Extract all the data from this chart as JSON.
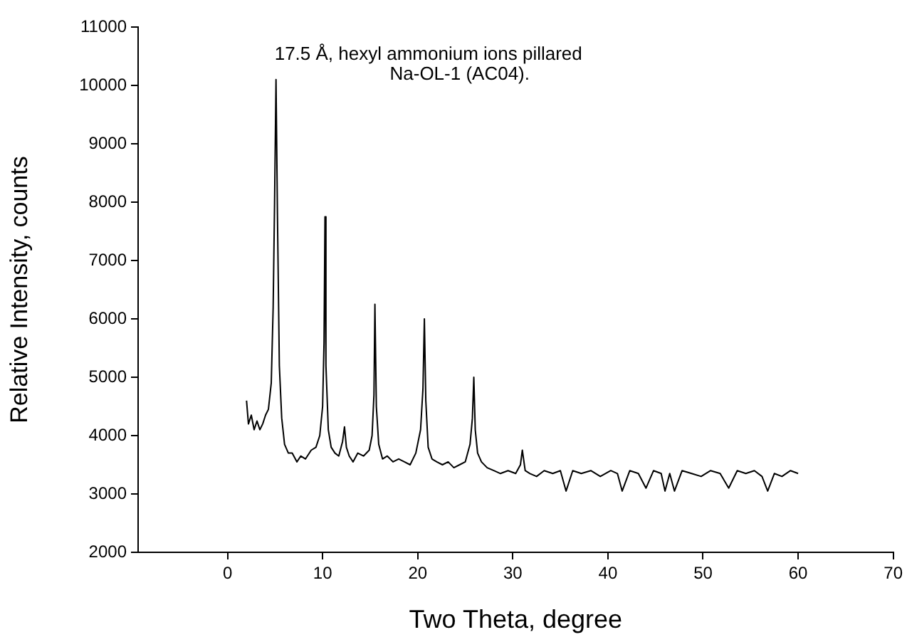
{
  "chart_data": {
    "type": "line",
    "xlabel": "Two Theta, degree",
    "ylabel": "Relative Intensity, counts",
    "annotations": [
      {
        "text": "17.5 Å, hexyl ammonium ions pillared\nNa-OL-1 (AC04).",
        "x": 5.1,
        "y": 10100
      }
    ],
    "xlim": [
      -9.4,
      70
    ],
    "xticks": [
      0,
      10,
      20,
      30,
      40,
      50,
      60,
      70
    ],
    "ylim": [
      2000,
      11000
    ],
    "yticks": [
      2000,
      3000,
      4000,
      5000,
      6000,
      7000,
      8000,
      9000,
      10000,
      11000
    ],
    "grid": false,
    "legend": false,
    "marker": "none",
    "line_style": "solid",
    "series": [
      {
        "color": "#000000",
        "x": [
          2.0,
          2.2,
          2.5,
          2.8,
          3.1,
          3.4,
          3.7,
          4.0,
          4.3,
          4.6,
          4.8,
          4.95,
          5.1,
          5.25,
          5.45,
          5.7,
          6.0,
          6.4,
          6.8,
          7.3,
          7.7,
          8.2,
          8.8,
          9.3,
          9.7,
          10.0,
          10.15,
          10.25,
          10.35,
          10.6,
          10.9,
          11.3,
          11.7,
          12.1,
          12.3,
          12.5,
          12.8,
          13.2,
          13.7,
          14.3,
          14.9,
          15.2,
          15.4,
          15.5,
          15.65,
          15.9,
          16.3,
          16.8,
          17.4,
          18.0,
          18.6,
          19.2,
          19.8,
          20.3,
          20.55,
          20.7,
          20.85,
          21.1,
          21.5,
          22.0,
          22.6,
          23.2,
          23.8,
          24.4,
          25.0,
          25.5,
          25.75,
          25.9,
          26.05,
          26.3,
          26.7,
          27.3,
          28.0,
          28.7,
          29.5,
          30.3,
          30.8,
          31.0,
          31.3,
          31.8,
          32.5,
          33.3,
          34.2,
          35.0,
          35.6,
          36.3,
          37.2,
          38.2,
          39.2,
          40.3,
          41.0,
          41.5,
          42.3,
          43.2,
          44.0,
          44.8,
          45.6,
          46.0,
          46.5,
          47.0,
          47.8,
          48.8,
          49.8,
          50.8,
          51.8,
          52.7,
          53.6,
          54.5,
          55.4,
          56.2,
          56.8,
          57.5,
          58.3,
          59.2,
          60.0
        ],
        "values": [
          4600,
          4200,
          4350,
          4100,
          4250,
          4100,
          4200,
          4350,
          4450,
          4900,
          6200,
          8000,
          10100,
          7800,
          5200,
          4300,
          3850,
          3700,
          3700,
          3550,
          3650,
          3600,
          3750,
          3800,
          4000,
          4500,
          5600,
          7750,
          5200,
          4100,
          3800,
          3700,
          3650,
          3900,
          4150,
          3800,
          3650,
          3550,
          3700,
          3650,
          3750,
          4000,
          4700,
          6250,
          4500,
          3850,
          3600,
          3650,
          3550,
          3600,
          3550,
          3500,
          3700,
          4100,
          4800,
          6000,
          4600,
          3800,
          3600,
          3550,
          3500,
          3550,
          3450,
          3500,
          3550,
          3850,
          4300,
          5000,
          4100,
          3700,
          3550,
          3450,
          3400,
          3350,
          3400,
          3350,
          3500,
          3750,
          3400,
          3350,
          3300,
          3400,
          3350,
          3400,
          3050,
          3400,
          3350,
          3400,
          3300,
          3400,
          3350,
          3050,
          3400,
          3350,
          3100,
          3400,
          3350,
          3050,
          3350,
          3050,
          3400,
          3350,
          3300,
          3400,
          3350,
          3100,
          3400,
          3350,
          3400,
          3300,
          3050,
          3350,
          3300,
          3400,
          3350
        ]
      }
    ]
  }
}
